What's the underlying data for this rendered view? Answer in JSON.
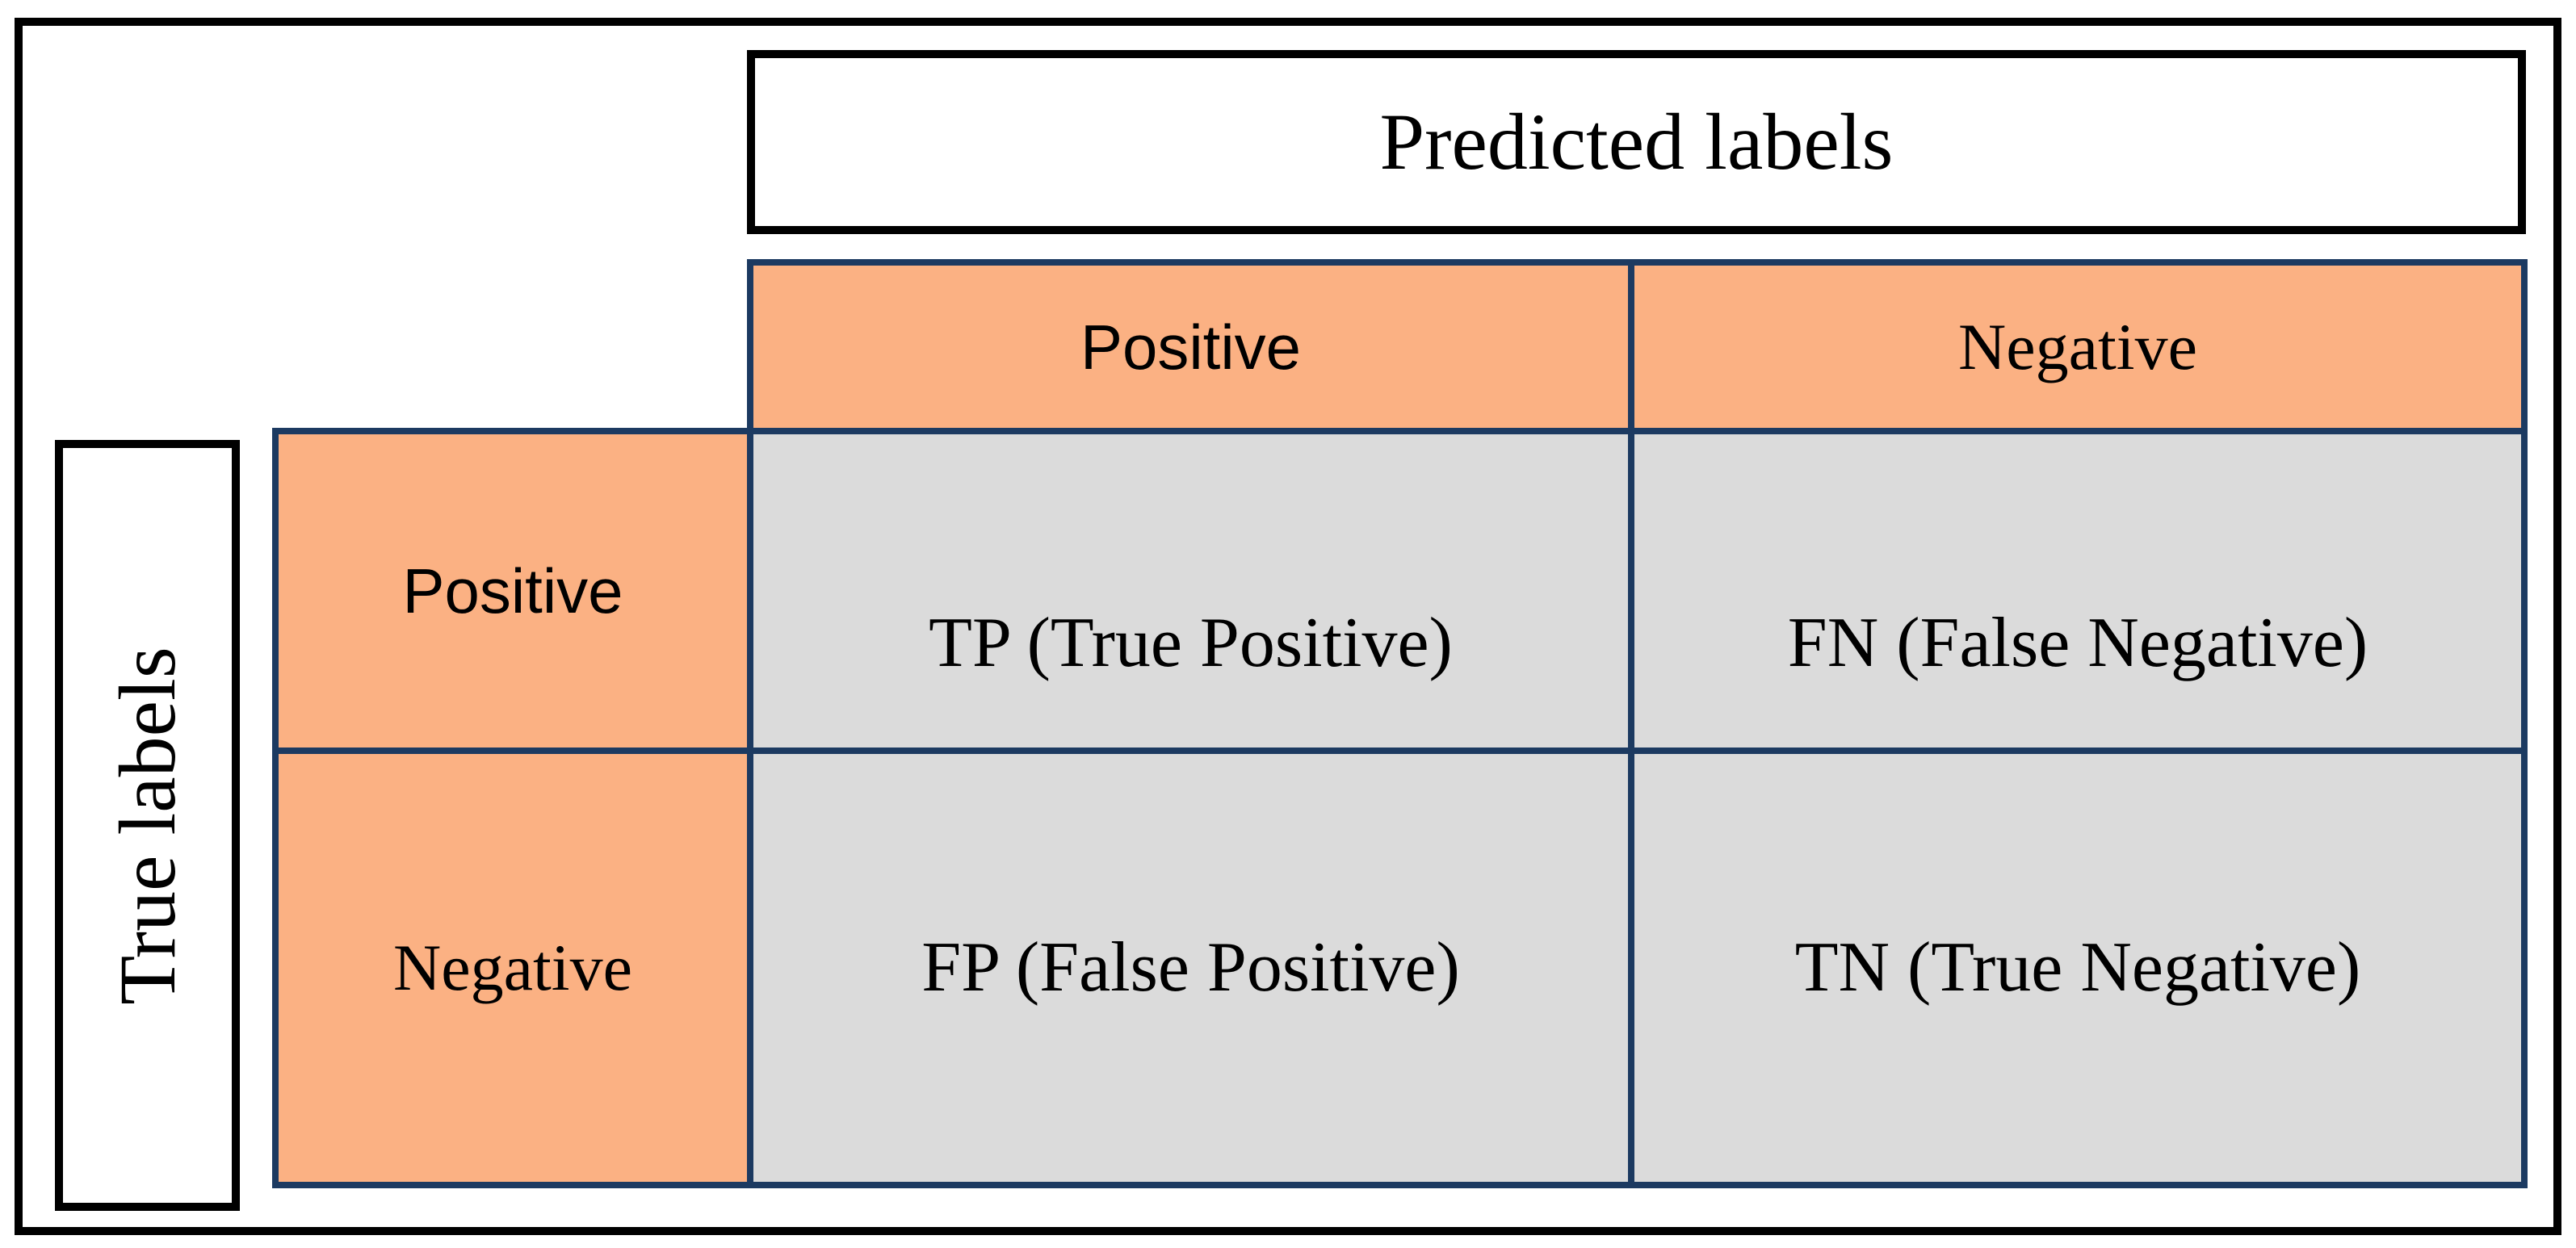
{
  "figure": {
    "predicted_axis_label": "Predicted labels",
    "true_axis_label": "True labels",
    "column_headers": [
      {
        "label": "Positive"
      },
      {
        "label": "Negative"
      }
    ],
    "row_headers": [
      {
        "label": "Positive"
      },
      {
        "label": "Negative"
      }
    ],
    "cells": [
      {
        "id": "tp",
        "text": "TP (True Positive)"
      },
      {
        "id": "fn",
        "text": "FN (False Negative)"
      },
      {
        "id": "fp",
        "text": "FP (False Positive)"
      },
      {
        "id": "tn",
        "text": "TN (True Negative)"
      }
    ],
    "colors": {
      "header_fill": "#FBB183",
      "data_fill": "#DBDBDB",
      "grid_line": "#1C3A61",
      "frame": "#000000",
      "text": "#000000",
      "background": "#FFFFFF"
    }
  }
}
